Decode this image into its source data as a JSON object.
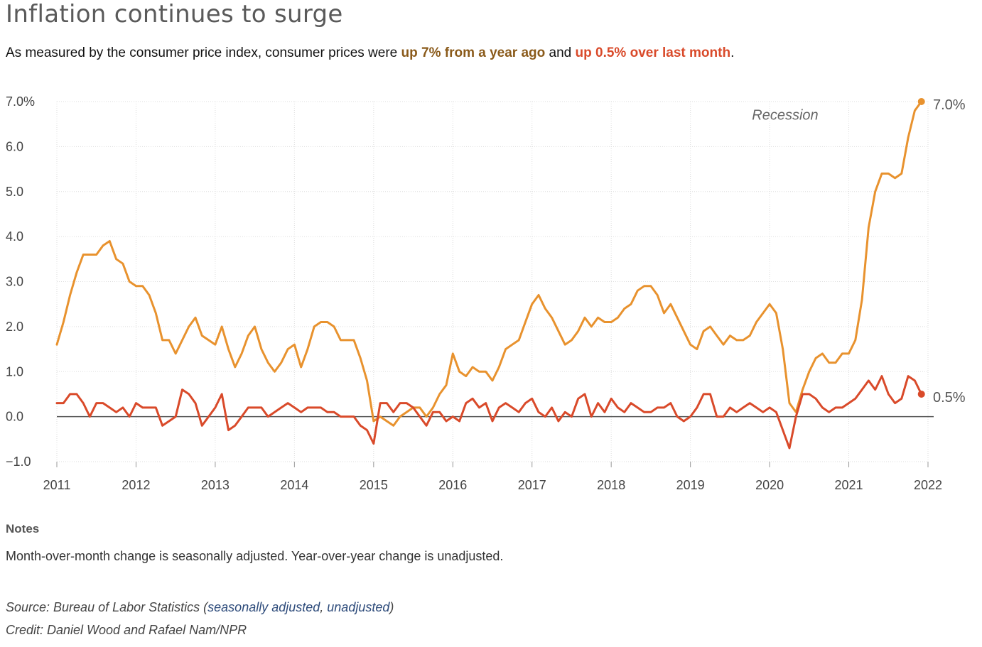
{
  "header": {
    "title": "Inflation continues to surge",
    "subtitle_pre": "As measured by the consumer price index, consumer prices were ",
    "subtitle_yoy": "up 7% from a year ago",
    "subtitle_mid": " and ",
    "subtitle_mom": "up 0.5% over last month",
    "subtitle_end": "."
  },
  "notes": {
    "title": "Notes",
    "text": "Month-over-month change is seasonally adjusted. Year-over-year change is unadjusted."
  },
  "source": {
    "prefix": "Source: Bureau of Labor Statistics (",
    "link1": "seasonally adjusted",
    "sep": ", ",
    "link2": "unadjusted",
    "suffix": ")"
  },
  "credit": "Credit: Daniel Wood and Rafael Nam/NPR",
  "colors": {
    "yoy": "#e8922e",
    "mom": "#d94a2a",
    "grid": "#dddddd",
    "zero": "#555555",
    "axis_text": "#444444"
  },
  "chart_data": {
    "type": "line",
    "x_start": "2011-01",
    "x_end": "2021-12",
    "xticks": [
      "2011",
      "2012",
      "2013",
      "2014",
      "2015",
      "2016",
      "2017",
      "2018",
      "2019",
      "2020",
      "2021",
      "2022"
    ],
    "yticks": [
      "7.0%",
      "6.0",
      "5.0",
      "4.0",
      "3.0",
      "2.0",
      "1.0",
      "0.0",
      "−1.0"
    ],
    "ylim": [
      -1.0,
      7.0
    ],
    "grid": true,
    "annotation": "Recession",
    "series": [
      {
        "key": "yoy",
        "end_label": "7.0%",
        "values": [
          1.6,
          2.1,
          2.7,
          3.2,
          3.6,
          3.6,
          3.6,
          3.8,
          3.9,
          3.5,
          3.4,
          3.0,
          2.9,
          2.9,
          2.7,
          2.3,
          1.7,
          1.7,
          1.4,
          1.7,
          2.0,
          2.2,
          1.8,
          1.7,
          1.6,
          2.0,
          1.5,
          1.1,
          1.4,
          1.8,
          2.0,
          1.5,
          1.2,
          1.0,
          1.2,
          1.5,
          1.6,
          1.1,
          1.5,
          2.0,
          2.1,
          2.1,
          2.0,
          1.7,
          1.7,
          1.7,
          1.3,
          0.8,
          -0.1,
          0.0,
          -0.1,
          -0.2,
          0.0,
          0.1,
          0.2,
          0.2,
          0.0,
          0.2,
          0.5,
          0.7,
          1.4,
          1.0,
          0.9,
          1.1,
          1.0,
          1.0,
          0.8,
          1.1,
          1.5,
          1.6,
          1.7,
          2.1,
          2.5,
          2.7,
          2.4,
          2.2,
          1.9,
          1.6,
          1.7,
          1.9,
          2.2,
          2.0,
          2.2,
          2.1,
          2.1,
          2.2,
          2.4,
          2.5,
          2.8,
          2.9,
          2.9,
          2.7,
          2.3,
          2.5,
          2.2,
          1.9,
          1.6,
          1.5,
          1.9,
          2.0,
          1.8,
          1.6,
          1.8,
          1.7,
          1.7,
          1.8,
          2.1,
          2.3,
          2.5,
          2.3,
          1.5,
          0.3,
          0.1,
          0.6,
          1.0,
          1.3,
          1.4,
          1.2,
          1.2,
          1.4,
          1.4,
          1.7,
          2.6,
          4.2,
          5.0,
          5.4,
          5.4,
          5.3,
          5.4,
          6.2,
          6.8,
          7.0
        ]
      },
      {
        "key": "mom",
        "end_label": "0.5%",
        "values": [
          0.3,
          0.3,
          0.5,
          0.5,
          0.3,
          0.0,
          0.3,
          0.3,
          0.2,
          0.1,
          0.2,
          0.0,
          0.3,
          0.2,
          0.2,
          0.2,
          -0.2,
          -0.1,
          0.0,
          0.6,
          0.5,
          0.3,
          -0.2,
          0.0,
          0.2,
          0.5,
          -0.3,
          -0.2,
          0.0,
          0.2,
          0.2,
          0.2,
          0.0,
          0.1,
          0.2,
          0.3,
          0.2,
          0.1,
          0.2,
          0.2,
          0.2,
          0.1,
          0.1,
          0.0,
          0.0,
          0.0,
          -0.2,
          -0.3,
          -0.6,
          0.3,
          0.3,
          0.1,
          0.3,
          0.3,
          0.2,
          0.0,
          -0.2,
          0.1,
          0.1,
          -0.1,
          0.0,
          -0.1,
          0.3,
          0.4,
          0.2,
          0.3,
          -0.1,
          0.2,
          0.3,
          0.2,
          0.1,
          0.3,
          0.4,
          0.1,
          0.0,
          0.2,
          -0.1,
          0.1,
          0.0,
          0.4,
          0.5,
          0.0,
          0.3,
          0.1,
          0.4,
          0.2,
          0.1,
          0.3,
          0.2,
          0.1,
          0.1,
          0.2,
          0.2,
          0.3,
          0.0,
          -0.1,
          0.0,
          0.2,
          0.5,
          0.5,
          0.0,
          0.0,
          0.2,
          0.1,
          0.2,
          0.3,
          0.2,
          0.1,
          0.2,
          0.1,
          -0.3,
          -0.7,
          0.0,
          0.5,
          0.5,
          0.4,
          0.2,
          0.1,
          0.2,
          0.2,
          0.3,
          0.4,
          0.6,
          0.8,
          0.6,
          0.9,
          0.5,
          0.3,
          0.4,
          0.9,
          0.8,
          0.5
        ]
      }
    ]
  }
}
